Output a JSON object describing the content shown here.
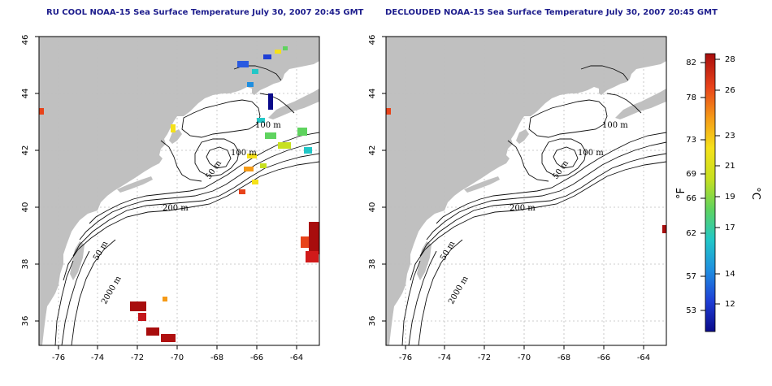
{
  "panels": [
    {
      "title": "RU COOL NOAA-15 Sea Surface Temperature July 30, 2007 20:45 GMT",
      "isobath_labels": [
        "100 m",
        "100 m",
        "50 m",
        "200 m",
        "50 m",
        "2000 m"
      ]
    },
    {
      "title": "DECLOUDED NOAA-15 Sea Surface Temperature July 30, 2007 20:45 GMT",
      "isobath_labels": [
        "100 m",
        "100 m",
        "50 m",
        "200 m",
        "50 m",
        "2000 m"
      ]
    }
  ],
  "axes": {
    "lon_ticks": [
      "-76",
      "-74",
      "-72",
      "-70",
      "-68",
      "-66",
      "-64"
    ],
    "lat_ticks": [
      "36",
      "38",
      "40",
      "42",
      "44",
      "46"
    ]
  },
  "colorbar": {
    "fahrenheit_ticks": [
      "82",
      "78",
      "73",
      "69",
      "66",
      "62",
      "57",
      "53"
    ],
    "celsius_ticks": [
      "28",
      "26",
      "23",
      "21",
      "19",
      "17",
      "14",
      "12"
    ],
    "fahrenheit_unit": "°F",
    "celsius_unit": "°C",
    "colors": [
      "#0a0a8a",
      "#1f3fd6",
      "#1f8ee0",
      "#22c7c7",
      "#5fd35f",
      "#c7e01f",
      "#f5e11a",
      "#f59a17",
      "#e8431a",
      "#a80d0d"
    ]
  },
  "colors": {
    "land": "#c0c0c0",
    "ocean": "#ffffff",
    "title": "#1c1c8c"
  }
}
